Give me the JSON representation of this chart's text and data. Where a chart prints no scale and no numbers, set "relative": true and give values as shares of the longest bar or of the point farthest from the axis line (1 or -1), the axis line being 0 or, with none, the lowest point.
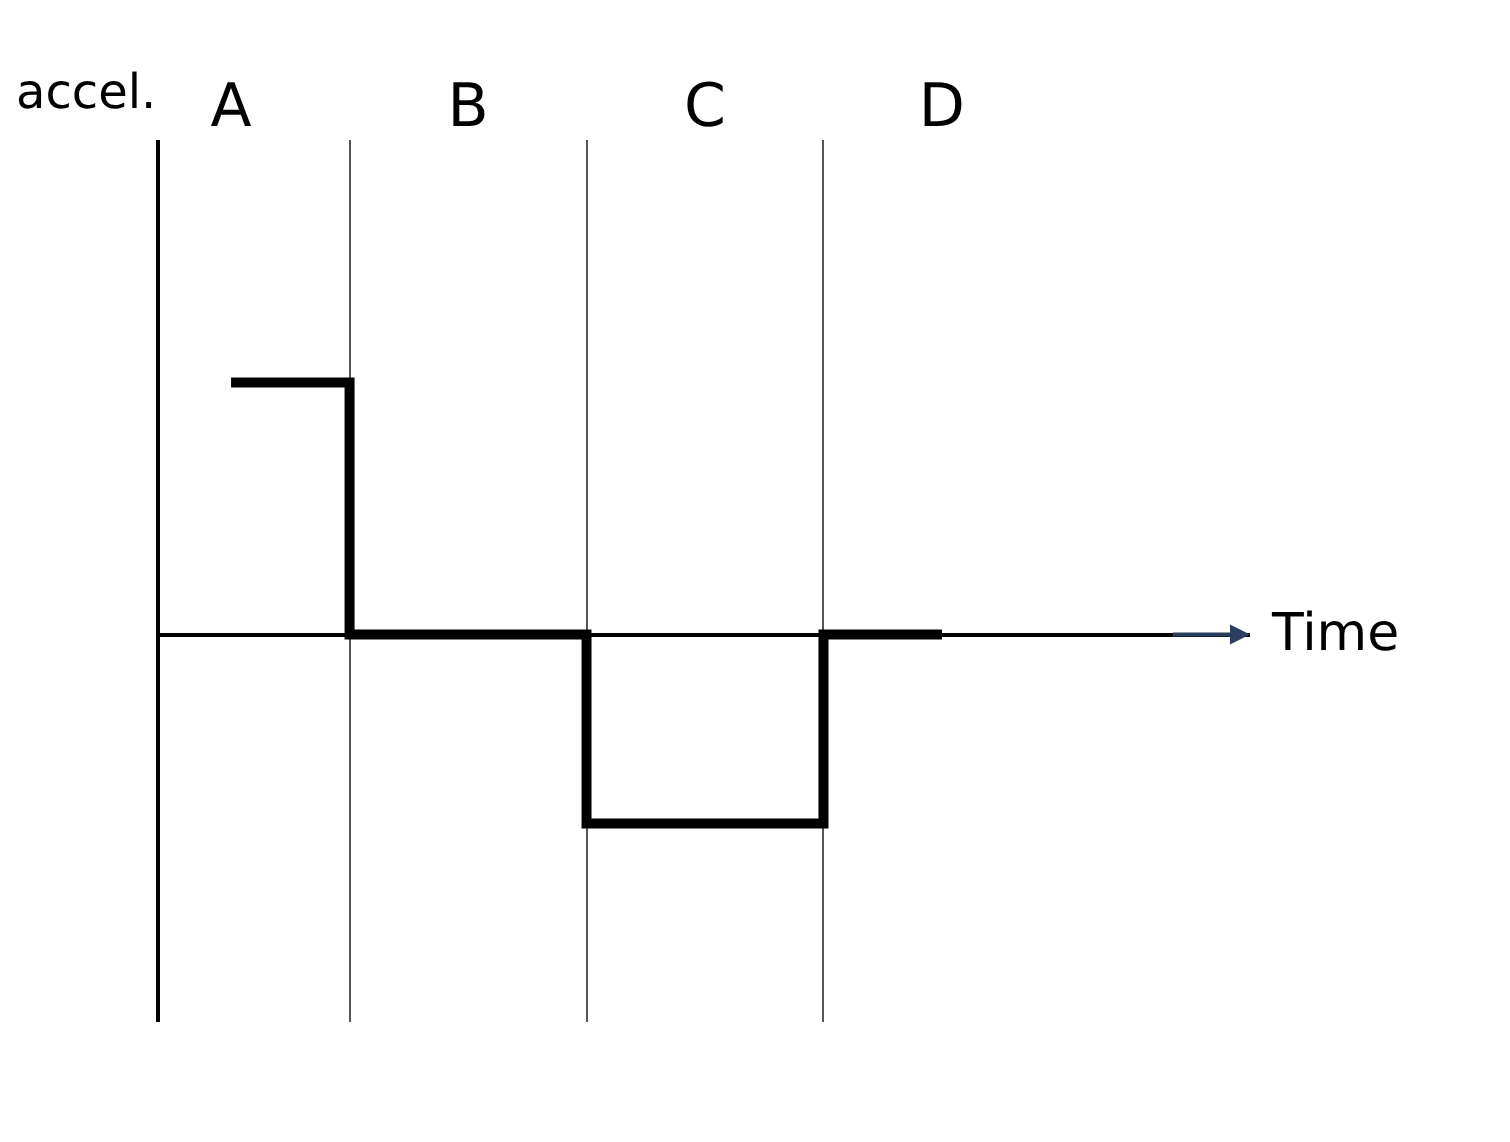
{
  "chart_data": {
    "type": "step",
    "relative": true,
    "xlabel": "Time",
    "ylabel": "accel.",
    "categories": [
      "A",
      "B",
      "C",
      "D"
    ],
    "series": [
      {
        "color": "#000000",
        "values": [
          1,
          0,
          -0.75,
          0
        ]
      }
    ],
    "grid": "x",
    "marker": "none",
    "line_style": "solid"
  }
}
